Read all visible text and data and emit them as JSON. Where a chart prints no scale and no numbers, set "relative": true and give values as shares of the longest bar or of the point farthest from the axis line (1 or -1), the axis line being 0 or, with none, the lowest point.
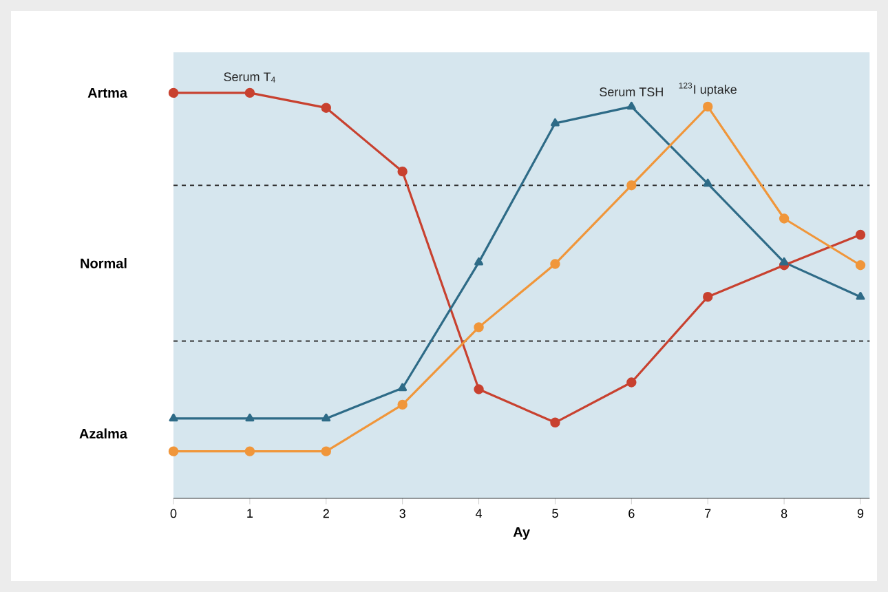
{
  "chart_data": {
    "type": "line",
    "relative": true,
    "xlabel": "Ay",
    "x": [
      0,
      1,
      2,
      3,
      4,
      5,
      6,
      7,
      8,
      9
    ],
    "xlim": [
      0,
      9.12
    ],
    "xticks": [
      0,
      1,
      2,
      3,
      4,
      5,
      6,
      7,
      8,
      9
    ],
    "tick_labels": "x",
    "grid": false,
    "line_style": "solid",
    "series": [
      {
        "name": "Serum T$_{4}$",
        "color": "#c8412f",
        "marker": "circle",
        "values": [
          1,
          1,
          0.963,
          0.806,
          0.269,
          0.187,
          0.286,
          0.497,
          0.575,
          0.65
        ]
      },
      {
        "name": "Serum TSH",
        "color": "#2e6b87",
        "marker": "triangle",
        "values": [
          0.197,
          0.197,
          0.197,
          0.272,
          0.582,
          0.925,
          0.966,
          0.776,
          0.582,
          0.497
        ]
      },
      {
        "name": "$^{123}$I uptake",
        "color": "#f0963a",
        "marker": "circle",
        "values": [
          0.116,
          0.116,
          0.116,
          0.231,
          0.422,
          0.578,
          0.772,
          0.966,
          0.69,
          0.575
        ]
      }
    ],
    "ref_lines": [
      {
        "axis": "y",
        "value": 0.772,
        "color": "#333333",
        "line_style": "dashed"
      },
      {
        "axis": "y",
        "value": 0.388,
        "color": "#333333",
        "line_style": "dashed"
      }
    ],
    "annotations": [
      "Artma",
      "Normal",
      "Azalma"
    ]
  }
}
